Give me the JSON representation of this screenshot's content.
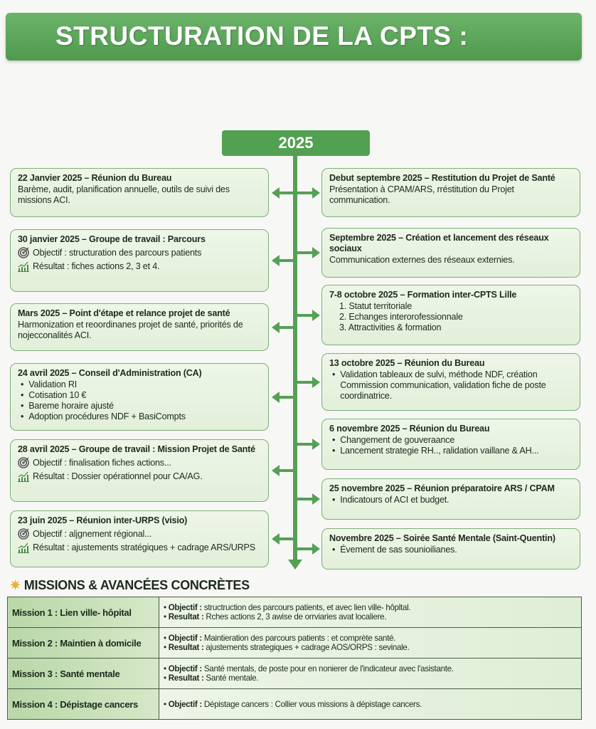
{
  "title": "STRUCTURATION DE LA CPTS :",
  "year": "2025",
  "colors": {
    "accent": "#55a055",
    "card_bg": "#e6f1de",
    "card_border": "#7fae78"
  },
  "left_events": [
    {
      "title": "22 Janvier 2025 – Réunion du Bureau",
      "lines": [
        {
          "kind": "text",
          "text": "Barème, audit, planification annuelle, outils de suivi des missions ACI."
        }
      ]
    },
    {
      "title": "30 janvier 2025 – Groupe de travail : Parcours",
      "lines": [
        {
          "kind": "objective",
          "icon": "target-icon",
          "text": "Objectif : structuration des parcours patients"
        },
        {
          "kind": "result",
          "icon": "chart-growth-icon",
          "text": "Résultat : fiches actions 2, 3 et 4."
        }
      ]
    },
    {
      "title": "Mars 2025 – Point d'étape et relance projet de santé",
      "lines": [
        {
          "kind": "text",
          "text": "Harmonization et reoordinanes projet de santé, priorités de nojecconalités ACI."
        }
      ]
    },
    {
      "title": "24 avril 2025 – Conseil d'Administration (CA)",
      "lines": [
        {
          "kind": "bullet",
          "text": "Validation RI"
        },
        {
          "kind": "bullet",
          "text": "Cotisation 10 €"
        },
        {
          "kind": "bullet",
          "text": "Bareme horaire ajusté"
        },
        {
          "kind": "bullet",
          "text": "Adoption procédures NDF + BasiCompts"
        }
      ]
    },
    {
      "title": "28 avril 2025 – Groupe de travail : Mission Projet de Santé",
      "lines": [
        {
          "kind": "objective",
          "icon": "target-icon",
          "text": "Objectif : finalisation fiches actions..."
        },
        {
          "kind": "result",
          "icon": "chart-growth-icon",
          "text": "Résultat : Dossier opérationnel pour CA/AG."
        }
      ]
    },
    {
      "title": "23 juin 2025 – Réunion inter-URPS (visio)",
      "lines": [
        {
          "kind": "objective",
          "icon": "target-icon",
          "text": "Objectif : aljgnement régional..."
        },
        {
          "kind": "result",
          "icon": "chart-growth-icon",
          "text": "Résultat : ajustements stratégiques + cadrage ARS/URPS"
        }
      ]
    }
  ],
  "right_events": [
    {
      "title": "Debut septembre 2025 – Restitution du Projet de Santé",
      "lines": [
        {
          "kind": "text",
          "text": "Présentation à CPAM/ARS, rréstitution du Projet communication."
        }
      ]
    },
    {
      "title": "Septembre 2025 – Création et lancement des réseaux sociaux",
      "lines": [
        {
          "kind": "text",
          "text": "Communication externes des réseaux externies."
        }
      ]
    },
    {
      "title": "7-8 octobre 2025 – Formation inter-CPTS Lille",
      "lines": [
        {
          "kind": "numbered",
          "text": "1. Statut territoriale"
        },
        {
          "kind": "numbered",
          "text": "2. Echanges interorofessionnale"
        },
        {
          "kind": "numbered",
          "text": "3. Attractivities & formation"
        }
      ]
    },
    {
      "title": "13 octobre 2025 – Réunion du Bureau",
      "lines": [
        {
          "kind": "bullet",
          "text": "Validation tableaux de sulvi, méthode NDF, création Commission communication, validation fiche de poste coordinatrice."
        }
      ]
    },
    {
      "title": "6 novembre 2025 – Réunion du Bureau",
      "lines": [
        {
          "kind": "bullet",
          "text": "Changement de gouveraance"
        },
        {
          "kind": "bullet",
          "text": "Lancement strategie RH.., ralidation vaillane & AH..."
        }
      ]
    },
    {
      "title": "25 novembre 2025 – Réunion préparatoire ARS / CPAM",
      "lines": [
        {
          "kind": "bullet",
          "text": "Indicatours of ACI et budget."
        }
      ]
    },
    {
      "title": "Novembre 2025 – Soirée Santé Mentale (Saint-Quentin)",
      "lines": [
        {
          "kind": "bullet",
          "text": "Évement de sas sounioilianes."
        }
      ]
    }
  ],
  "missions": {
    "heading": "MISSIONS & AVANCÉES CONCRÈTES",
    "heading_icon": "star-icon",
    "rows": [
      {
        "name": "Mission 1 : Lien ville- hôpital",
        "items": [
          {
            "label": "Objectif :",
            "text": " structruction des parcours patients, et avec lien ville- hôpltal."
          },
          {
            "label": "Resultat :",
            "text": " Rches actions 2, 3 awise de orrviaries avat localiere."
          }
        ]
      },
      {
        "name": "Mission 2 : Maintien à domicile",
        "items": [
          {
            "label": "Objectif :",
            "text": " Maintieration des parcours patients : et comprète santé."
          },
          {
            "label": "Resultat :",
            "text": " ajustements strategiques + cadrage AOS/ORPS : sevinale."
          }
        ]
      },
      {
        "name": "Mission 3 : Santé mentale",
        "items": [
          {
            "label": "Objectif :",
            "text": " Santé mentals, de poste pour en nonierer de l'indicateur avec l'asistante."
          },
          {
            "label": "Resultat :",
            "text": " Santé mentale."
          }
        ]
      },
      {
        "name": "Mission 4 : Dépistage cancers",
        "items": [
          {
            "label": "Objectif :",
            "text": " Dépistage cancers : Collier vous missions à dépistage cancers."
          }
        ]
      }
    ]
  }
}
